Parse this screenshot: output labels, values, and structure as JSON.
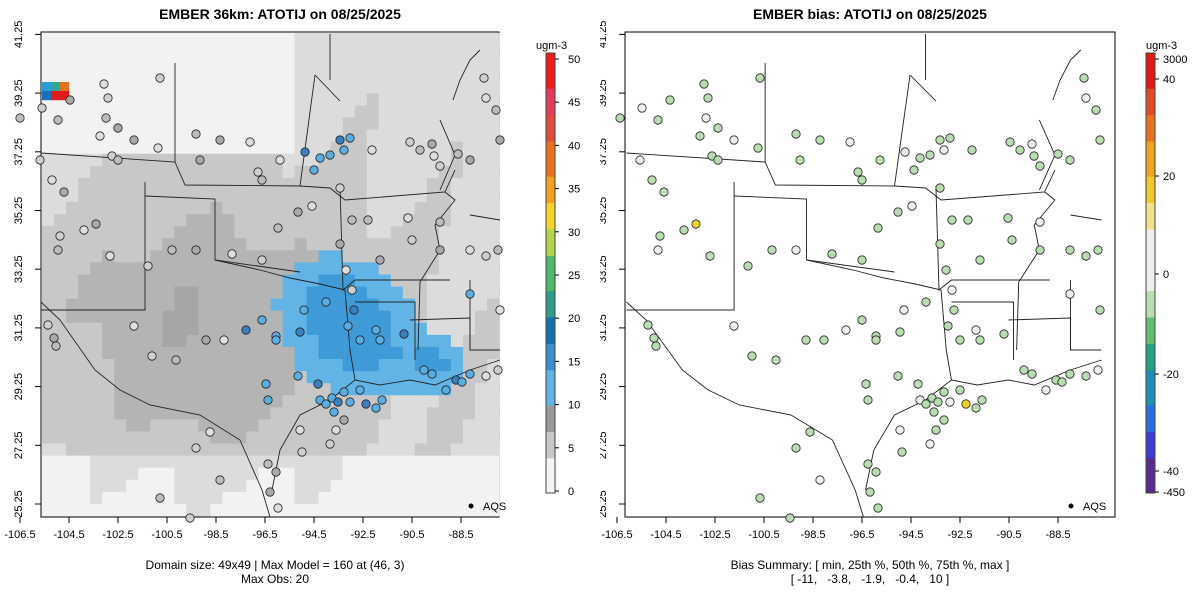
{
  "left": {
    "title": "EMBER 36km: ATOTIJ on 08/25/2025",
    "legend_label": "AQS",
    "caption_line1": "Domain size: 49x49 | Max Model = 160 at (46, 3)",
    "caption_line2": "Max Obs: 20",
    "colorbar_unit": "ugm-3",
    "colorbar_ticks": [
      "0",
      "5",
      "10",
      "15",
      "20",
      "25",
      "30",
      "35",
      "40",
      "45",
      "50"
    ]
  },
  "right": {
    "title": "EMBER bias: ATOTIJ on 08/25/2025",
    "legend_label": "AQS",
    "caption_line1": "Bias Summary: [ min, 25th %, 50th %, 75th %, max ]",
    "caption_line2": "[ -11,   -3.8,   -1.9,   -0.4,   10 ]",
    "colorbar_unit": "ugm-3",
    "colorbar_ticks": [
      "-450",
      "-40",
      "-20",
      "0",
      "20",
      "40",
      "3000"
    ]
  },
  "axes": {
    "x_ticks": [
      "-106.5",
      "-104.5",
      "-102.5",
      "-100.5",
      "-98.5",
      "-96.5",
      "-94.5",
      "-92.5",
      "-90.5",
      "-88.5"
    ],
    "y_ticks": [
      "25.25",
      "27.25",
      "29.25",
      "31.25",
      "33.25",
      "35.25",
      "37.25",
      "39.25",
      "41.25"
    ]
  },
  "colors": {
    "gray_scale": [
      "#f2f2f2",
      "#dcdcdc",
      "#c8c8c8",
      "#b4b4b4",
      "#a6a6a6"
    ],
    "blue": "#59aee3",
    "dark_blue": "#3a7fc0",
    "bias_green": "#b8ddb0",
    "bias_white": "#eeeeee",
    "bias_yellow": "#f0d22a"
  }
}
